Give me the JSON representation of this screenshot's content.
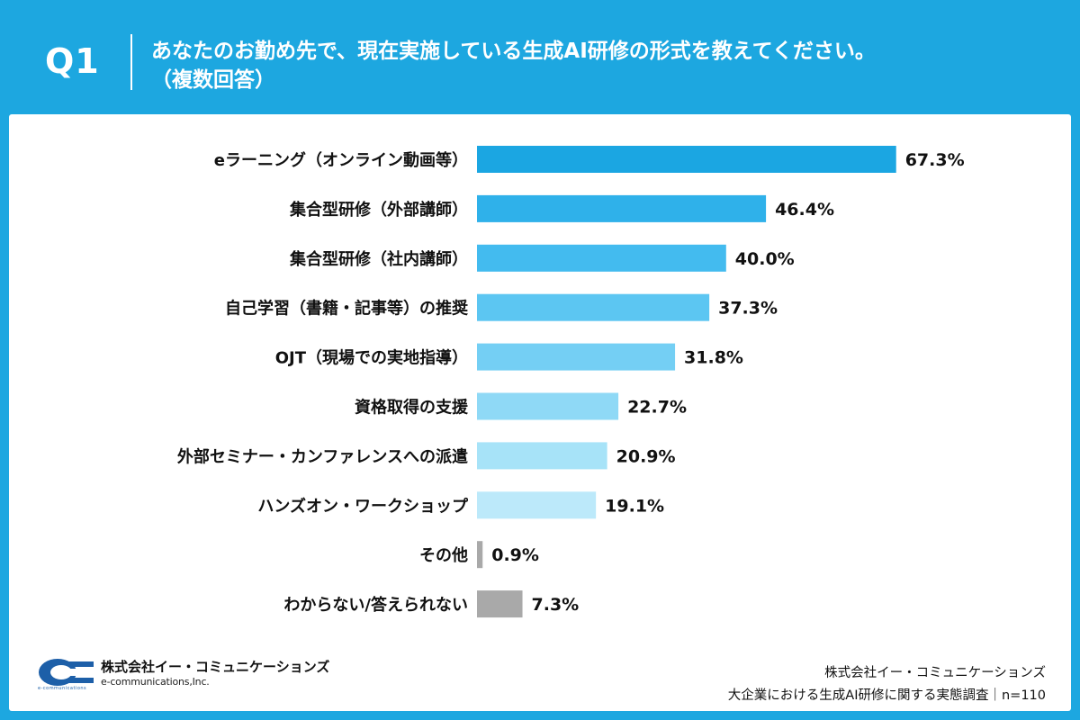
{
  "header": {
    "question_label": "Q1",
    "title_line1": "あなたのお勤め先で、現在実施している生成AI研修の形式を教えてください。",
    "title_line2": "（複数回答）"
  },
  "chart_data": {
    "type": "bar",
    "orientation": "horizontal",
    "title": "",
    "xlabel": "",
    "ylabel": "",
    "xlim": [
      0,
      100
    ],
    "grid": false,
    "categories": [
      "eラーニング（オンライン動画等）",
      "集合型研修（外部講師）",
      "集合型研修（社内講師）",
      "自己学習（書籍・記事等）の推奨",
      "OJT（現場での実地指導）",
      "資格取得の支援",
      "外部セミナー・カンファレンスへの派遣",
      "ハンズオン・ワークショップ",
      "その他",
      "わからない/答えられない"
    ],
    "values": [
      67.3,
      46.4,
      40.0,
      37.3,
      31.8,
      22.7,
      20.9,
      19.1,
      0.9,
      7.3
    ],
    "value_labels": [
      "67.3%",
      "46.4%",
      "40.0%",
      "37.3%",
      "31.8%",
      "22.7%",
      "20.9%",
      "19.1%",
      "0.9%",
      "7.3%"
    ],
    "colors": [
      "#1ba6e2",
      "#2fb1ea",
      "#43bbef",
      "#5cc6f2",
      "#74cff4",
      "#8fd9f6",
      "#a7e3f8",
      "#bce9fa",
      "#a9a9a9",
      "#a9a9a9"
    ]
  },
  "footer": {
    "logo_company": "株式会社イー・コミュニケーションズ",
    "logo_english": "e-communications,Inc.",
    "logo_tiny": "e-communications",
    "source_line1": "株式会社イー・コミュニケーションズ",
    "source_line2": "大企業における生成AI研修に関する実態調査｜n=110"
  },
  "theme": {
    "accent": "#1da7e0",
    "text": "#111111",
    "logo_blue": "#1d5fa8"
  }
}
